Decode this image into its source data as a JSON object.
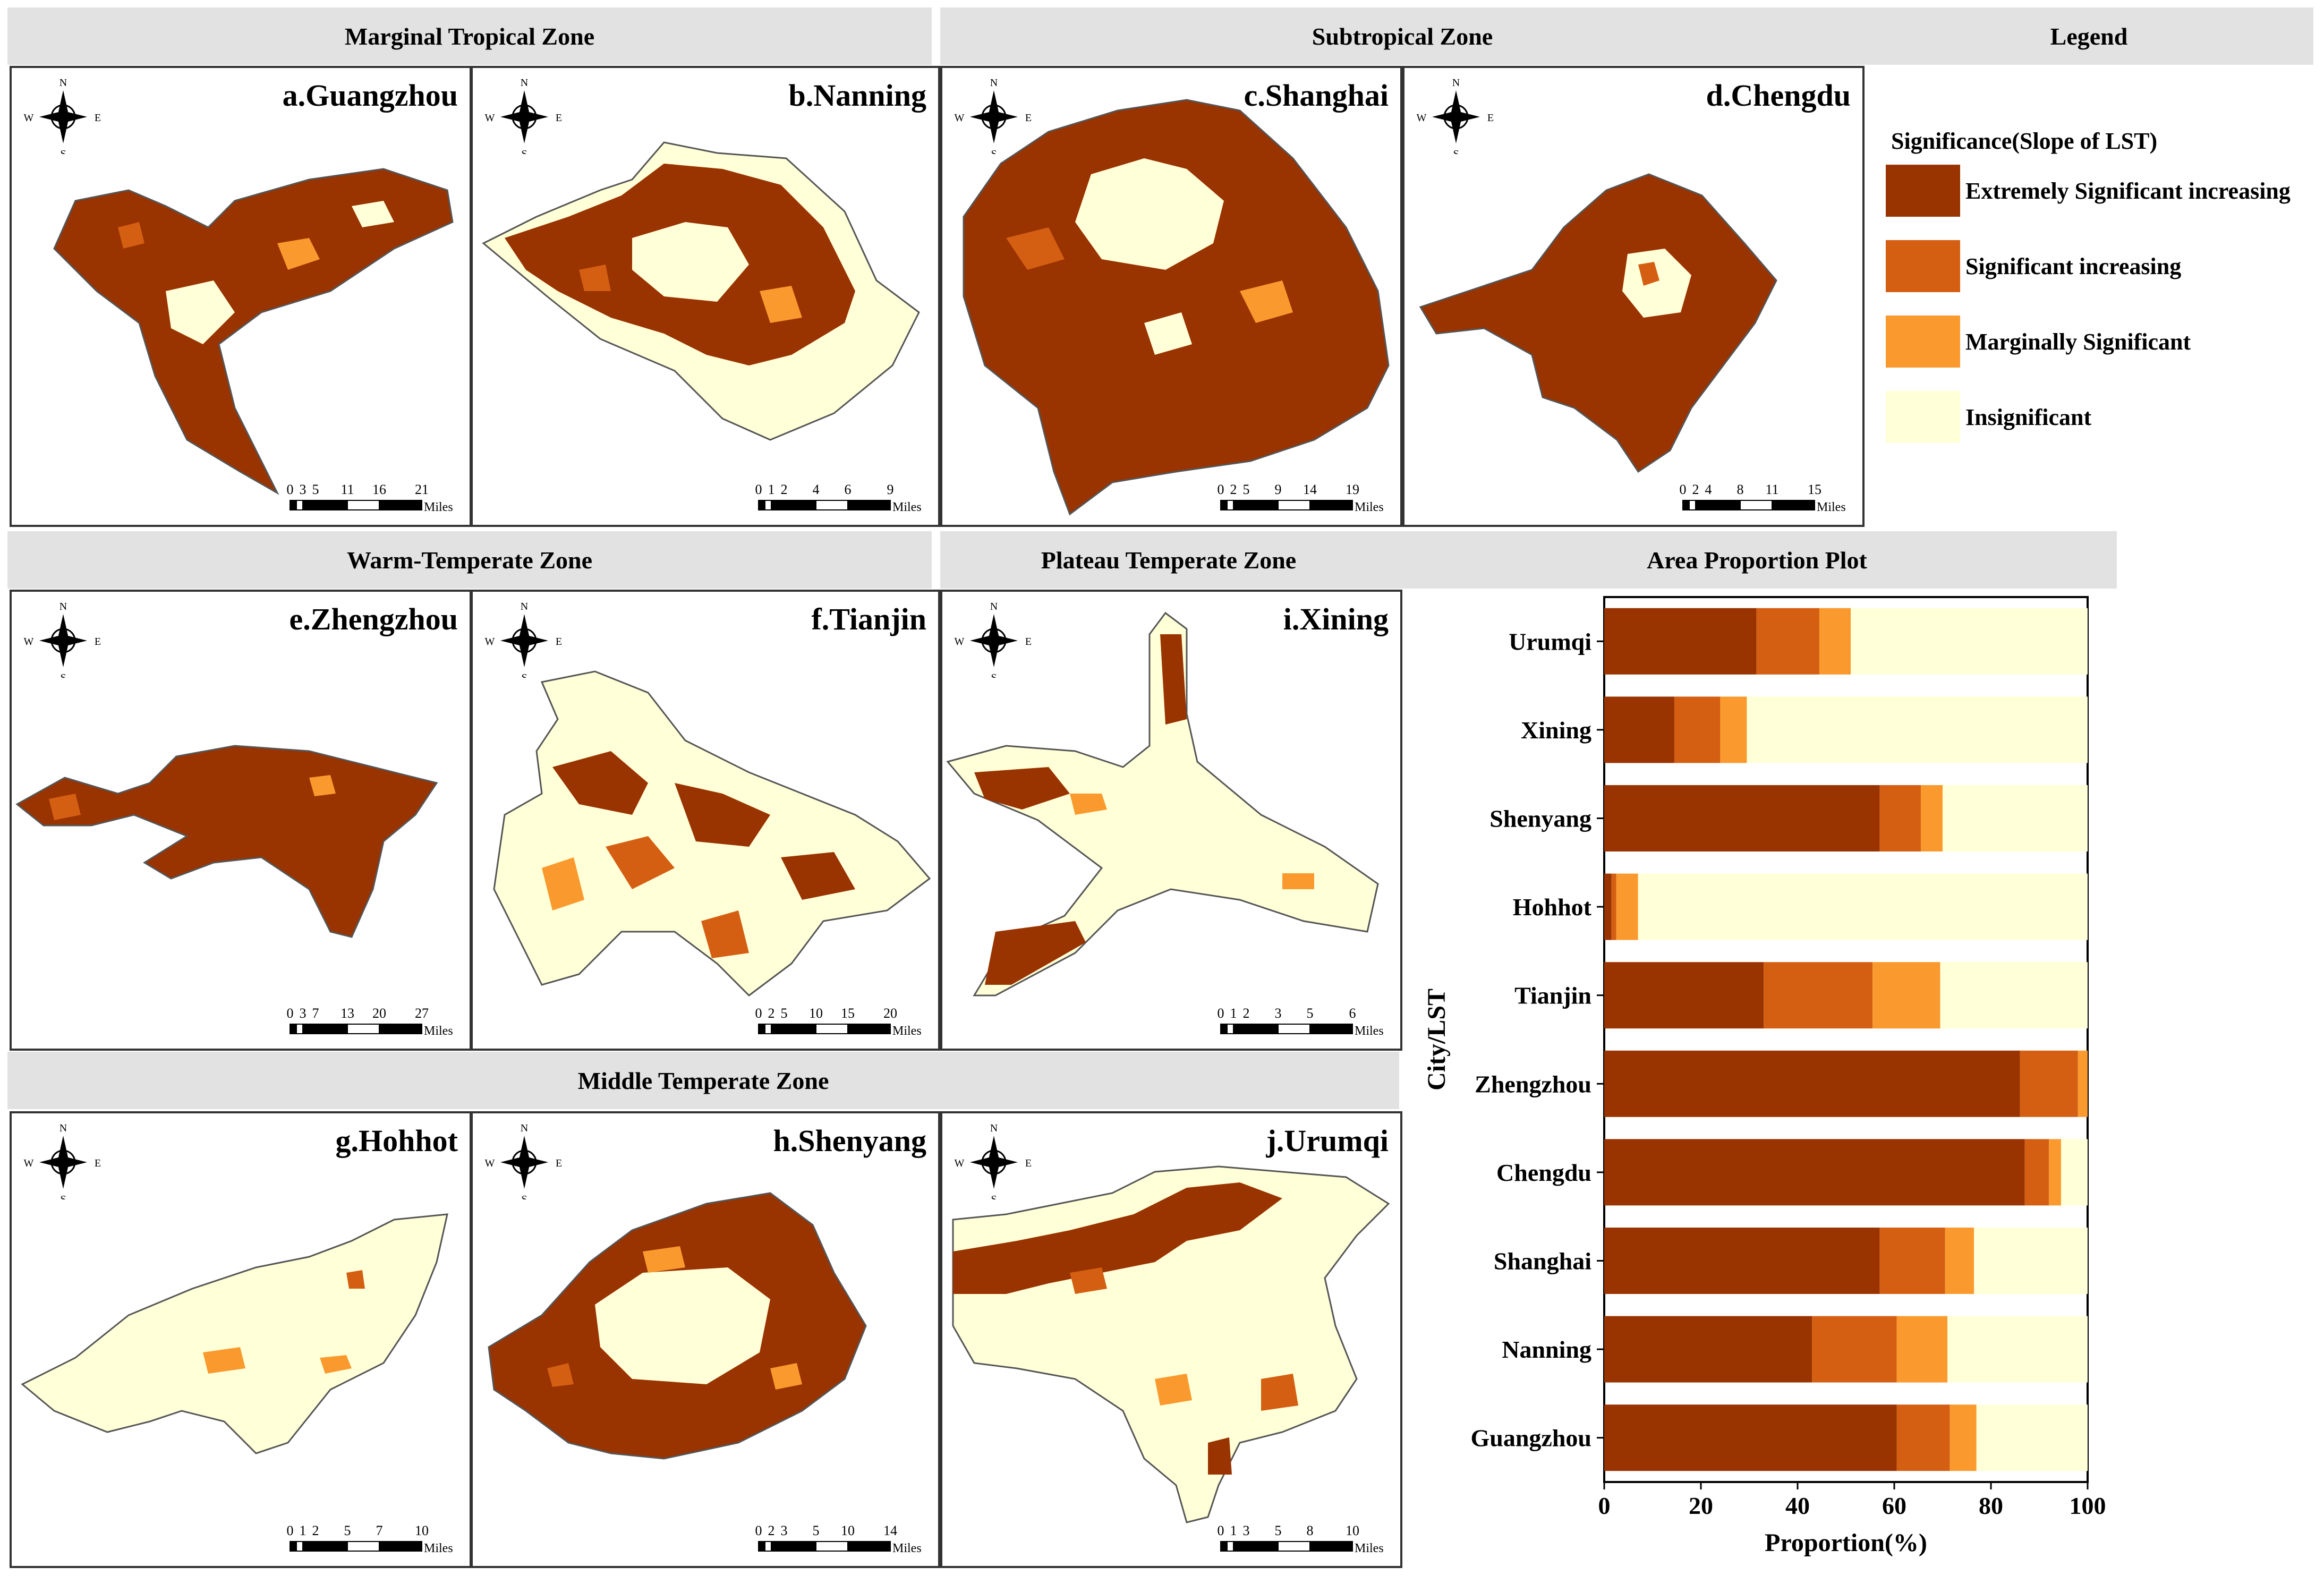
{
  "headers": {
    "marginal": "Marginal Tropical Zone",
    "subtropical": "Subtropical Zone",
    "legend": "Legend",
    "warm": "Warm-Temperate Zone",
    "plateau": "Plateau Temperate Zone",
    "area_plot": "Area Proportion  Plot",
    "middle": "Middle Temperate Zone"
  },
  "compass": {
    "n": "N",
    "s": "S",
    "w": "W",
    "e": "E"
  },
  "maps": [
    {
      "id": "a",
      "title": "a.Guangzhou",
      "scale": [
        "0",
        "3",
        "5",
        "11",
        "16",
        "21"
      ],
      "unit": "Miles"
    },
    {
      "id": "b",
      "title": "b.Nanning",
      "scale": [
        "0",
        "1",
        "2",
        "4",
        "6",
        "9"
      ],
      "unit": "Miles"
    },
    {
      "id": "c",
      "title": "c.Shanghai",
      "scale": [
        "0",
        "2",
        "5",
        "9",
        "14",
        "19"
      ],
      "unit": "Miles"
    },
    {
      "id": "d",
      "title": "d.Chengdu",
      "scale": [
        "0",
        "2",
        "4",
        "8",
        "11",
        "15"
      ],
      "unit": "Miles"
    },
    {
      "id": "e",
      "title": "e.Zhengzhou",
      "scale": [
        "0",
        "3",
        "7",
        "13",
        "20",
        "27"
      ],
      "unit": "Miles"
    },
    {
      "id": "f",
      "title": "f.Tianjin",
      "scale": [
        "0",
        "2",
        "5",
        "10",
        "15",
        "20"
      ],
      "unit": "Miles"
    },
    {
      "id": "i",
      "title": "i.Xining",
      "scale": [
        "0",
        "1",
        "2",
        "3",
        "5",
        "6"
      ],
      "unit": "Miles"
    },
    {
      "id": "g",
      "title": "g.Hohhot",
      "scale": [
        "0",
        "1",
        "2",
        "5",
        "7",
        "10"
      ],
      "unit": "Miles"
    },
    {
      "id": "h",
      "title": "h.Shenyang",
      "scale": [
        "0",
        "2",
        "3",
        "5",
        "10",
        "14"
      ],
      "unit": "Miles"
    },
    {
      "id": "j",
      "title": "j.Urumqi",
      "scale": [
        "0",
        "1",
        "3",
        "5",
        "8",
        "10"
      ],
      "unit": "Miles"
    }
  ],
  "legend": {
    "title": "Significance(Slope of LST)",
    "items": [
      {
        "label": "Extremely Significant increasing",
        "color": "#993300"
      },
      {
        "label": "Significant increasing",
        "color": "#d45f12"
      },
      {
        "label": "Marginally Significant",
        "color": "#fa9a2e"
      },
      {
        "label": "Insignificant",
        "color": "#ffffd8"
      }
    ]
  },
  "chart_data": {
    "type": "bar",
    "orientation": "horizontal",
    "stacked": true,
    "categories": [
      "Urumqi",
      "Xining",
      "Shenyang",
      "Hohhot",
      "Tianjin",
      "Zhengzhou",
      "Chengdu",
      "Shanghai",
      "Nanning",
      "Guangzhou"
    ],
    "series": [
      {
        "name": "Extremely Significant increasing",
        "values": [
          31.5,
          14.5,
          57,
          1.5,
          33,
          86,
          87,
          57,
          43,
          60.5
        ]
      },
      {
        "name": "Significant increasing",
        "values": [
          13,
          9.5,
          8.5,
          1,
          22.5,
          12,
          5,
          13.5,
          17.5,
          11
        ]
      },
      {
        "name": "Marginally Significant",
        "values": [
          6.5,
          5.5,
          4.5,
          4.5,
          14,
          2,
          2.5,
          6,
          10.5,
          5.5
        ]
      },
      {
        "name": "Insignificant",
        "values": [
          49,
          70.5,
          30,
          93,
          30.5,
          0,
          5.5,
          23.5,
          29,
          23
        ]
      }
    ],
    "xlabel": "Proportion(%)",
    "ylabel": "City/LST",
    "xlim": [
      0,
      100
    ],
    "xticks": [
      "0",
      "20",
      "40",
      "60",
      "80",
      "100"
    ]
  }
}
